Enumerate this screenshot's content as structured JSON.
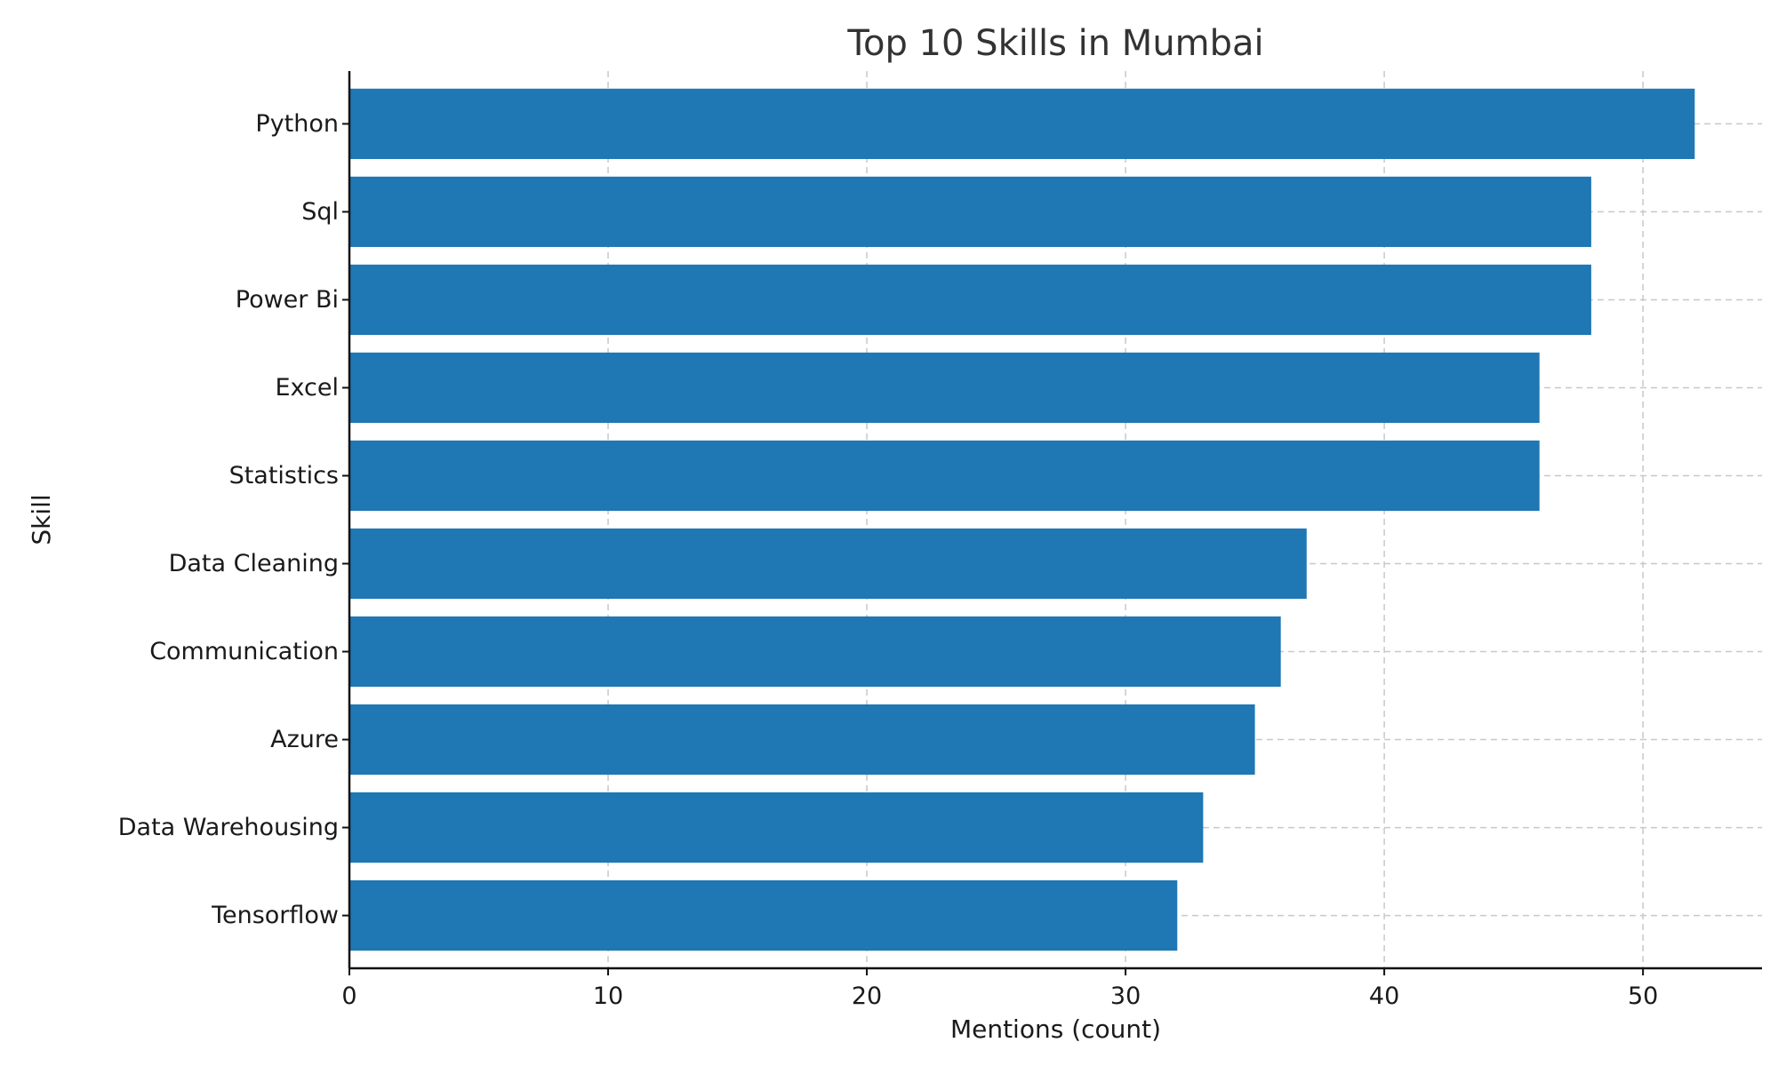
{
  "chart_data": {
    "type": "bar",
    "orientation": "horizontal",
    "title": "Top 10 Skills in Mumbai",
    "xlabel": "Mentions (count)",
    "ylabel": "Skill",
    "categories": [
      "Python",
      "Sql",
      "Power Bi",
      "Excel",
      "Statistics",
      "Data Cleaning",
      "Communication",
      "Azure",
      "Data Warehousing",
      "Tensorflow"
    ],
    "values": [
      52,
      48,
      48,
      46,
      46,
      37,
      36,
      35,
      33,
      32
    ],
    "xlim": [
      0,
      54.6
    ],
    "xticks": [
      0,
      10,
      20,
      30,
      40,
      50
    ],
    "grid": true,
    "bar_color": "#1f77b4"
  }
}
